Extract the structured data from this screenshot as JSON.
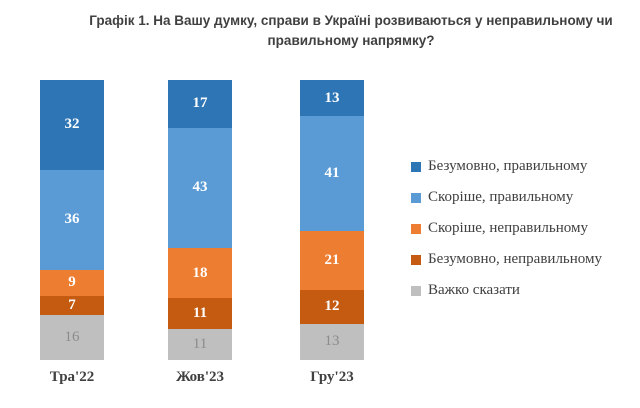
{
  "title": "Графік 1. На Вашу думку, справи в Україні розвиваються у неправильному чи правильному напрямку?",
  "chart_data": {
    "type": "bar",
    "stacked": true,
    "orientation": "vertical",
    "title": "Графік 1. На Вашу думку, справи в Україні розвиваються у неправильному чи правильному напрямку?",
    "categories": [
      "Тра'22",
      "Жов'23",
      "Гру'23"
    ],
    "series": [
      {
        "name": "Безумовно, правильному",
        "color": "#2E75B6",
        "label_color": "#FFFFFF",
        "label_bold": true,
        "values": [
          32,
          17,
          13
        ]
      },
      {
        "name": "Скоріше, правильному",
        "color": "#5B9BD5",
        "label_color": "#FFFFFF",
        "label_bold": true,
        "values": [
          36,
          43,
          41
        ]
      },
      {
        "name": "Скоріше, неправильному",
        "color": "#ED7D31",
        "label_color": "#FFFFFF",
        "label_bold": true,
        "values": [
          9,
          18,
          21
        ]
      },
      {
        "name": "Безумовно, неправильному",
        "color": "#C55A11",
        "label_color": "#FFFFFF",
        "label_bold": true,
        "values": [
          7,
          11,
          12
        ]
      },
      {
        "name": "Важко сказати",
        "color": "#BFBFBF",
        "label_color": "#8C8C8C",
        "label_bold": false,
        "values": [
          16,
          11,
          13
        ]
      }
    ],
    "stack_order": "first-series-on-top",
    "ylim": [
      0,
      100
    ],
    "grid": false,
    "axes_visible": false,
    "data_labels": true,
    "legend_position": "right",
    "xlabel": "",
    "ylabel": ""
  },
  "layout_colors": {
    "background": "#FFFFFF",
    "title_text": "#404040",
    "category_text": "#404040",
    "legend_text": "#404040"
  }
}
